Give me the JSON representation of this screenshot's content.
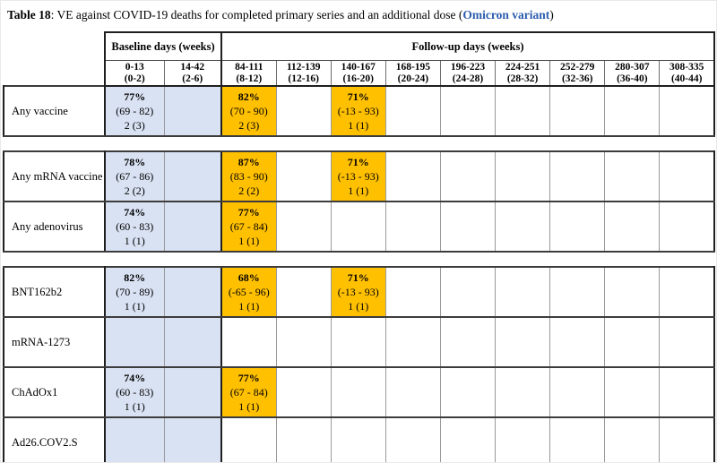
{
  "title": {
    "label": "Table 18",
    "body": ": VE against COVID-19 deaths for completed primary series and an additional dose (",
    "variant": "Omicron variant",
    "close": ")"
  },
  "colors": {
    "baseline_fill": "#D9E2F3",
    "highlight_fill": "#FFC000",
    "variant_text": "#2B5CAD"
  },
  "header": {
    "baseline_label": "Baseline days (weeks)",
    "followup_label": "Follow-up days (weeks)",
    "columns": [
      {
        "days": "0-13",
        "weeks": "(0-2)"
      },
      {
        "days": "14-42",
        "weeks": "(2-6)"
      },
      {
        "days": "84-111",
        "weeks": "(8-12)"
      },
      {
        "days": "112-139",
        "weeks": "(12-16)"
      },
      {
        "days": "140-167",
        "weeks": "(16-20)"
      },
      {
        "days": "168-195",
        "weeks": "(20-24)"
      },
      {
        "days": "196-223",
        "weeks": "(24-28)"
      },
      {
        "days": "224-251",
        "weeks": "(28-32)"
      },
      {
        "days": "252-279",
        "weeks": "(32-36)"
      },
      {
        "days": "280-307",
        "weeks": "(36-40)"
      },
      {
        "days": "308-335",
        "weeks": "(40-44)"
      }
    ]
  },
  "sections": [
    {
      "rows": [
        {
          "label": "Any vaccine",
          "cells": [
            {
              "pct": "77%",
              "ci": "(69 - 82)",
              "n": "2 (3)"
            },
            null,
            {
              "pct": "82%",
              "ci": "(70 - 90)",
              "n": "2 (3)",
              "highlighted": true
            },
            null,
            {
              "pct": "71%",
              "ci": "(-13 - 93)",
              "n": "1 (1)",
              "highlighted": true
            },
            null,
            null,
            null,
            null,
            null,
            null
          ]
        }
      ]
    },
    {
      "rows": [
        {
          "label": "Any mRNA vaccine",
          "cells": [
            {
              "pct": "78%",
              "ci": "(67 - 86)",
              "n": "2 (2)"
            },
            null,
            {
              "pct": "87%",
              "ci": "(83 - 90)",
              "n": "2 (2)",
              "highlighted": true
            },
            null,
            {
              "pct": "71%",
              "ci": "(-13 - 93)",
              "n": "1 (1)",
              "highlighted": true
            },
            null,
            null,
            null,
            null,
            null,
            null
          ]
        },
        {
          "label": "Any adenovirus",
          "cells": [
            {
              "pct": "74%",
              "ci": "(60 - 83)",
              "n": "1 (1)"
            },
            null,
            {
              "pct": "77%",
              "ci": "(67 - 84)",
              "n": "1 (1)",
              "highlighted": true
            },
            null,
            null,
            null,
            null,
            null,
            null,
            null,
            null
          ]
        }
      ]
    },
    {
      "rows": [
        {
          "label": "BNT162b2",
          "cells": [
            {
              "pct": "82%",
              "ci": "(70 - 89)",
              "n": "1 (1)"
            },
            null,
            {
              "pct": "68%",
              "ci": "(-65 - 96)",
              "n": "1 (1)",
              "highlighted": true
            },
            null,
            {
              "pct": "71%",
              "ci": "(-13 - 93)",
              "n": "1 (1)",
              "highlighted": true
            },
            null,
            null,
            null,
            null,
            null,
            null
          ]
        },
        {
          "label": "mRNA-1273",
          "cells": [
            null,
            null,
            null,
            null,
            null,
            null,
            null,
            null,
            null,
            null,
            null
          ]
        },
        {
          "label": "ChAdOx1",
          "cells": [
            {
              "pct": "74%",
              "ci": "(60 - 83)",
              "n": "1 (1)"
            },
            null,
            {
              "pct": "77%",
              "ci": "(67 - 84)",
              "n": "1 (1)",
              "highlighted": true
            },
            null,
            null,
            null,
            null,
            null,
            null,
            null,
            null
          ]
        },
        {
          "label": "Ad26.COV2.S",
          "cells": [
            null,
            null,
            null,
            null,
            null,
            null,
            null,
            null,
            null,
            null,
            null
          ]
        }
      ]
    }
  ]
}
